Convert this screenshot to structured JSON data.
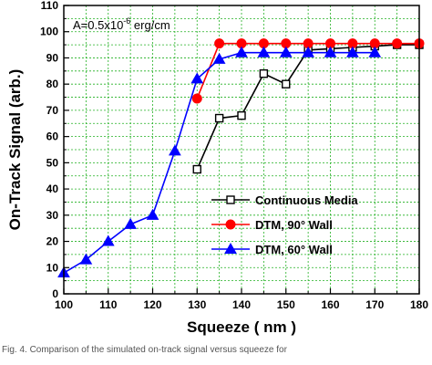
{
  "caption": "Fig. 4. Comparison of the simulated on-track signal versus squeeze for",
  "chart_data": {
    "type": "line",
    "xlabel": "Squeeze ( nm )",
    "ylabel": "On-Track Signal (arb.)",
    "annotation": {
      "prefix": "A=0.5x10",
      "exponent": "-6",
      "suffix": " erg/cm"
    },
    "xlim": [
      100,
      180
    ],
    "ylim": [
      0,
      110
    ],
    "xticks": [
      100,
      110,
      120,
      130,
      140,
      150,
      160,
      170,
      180
    ],
    "yticks": [
      0,
      10,
      20,
      30,
      40,
      50,
      60,
      70,
      80,
      90,
      100,
      110
    ],
    "xtick_labels": [
      "100",
      "110",
      "120",
      "130",
      "140",
      "150",
      "160",
      "170",
      "180"
    ],
    "ytick_labels": [
      "0",
      "10",
      "20",
      "30",
      "40",
      "50",
      "60",
      "70",
      "80",
      "90",
      "100",
      "110"
    ],
    "grid": true,
    "legend_position": "lower-right",
    "series": [
      {
        "name": "Continuous Media",
        "color": "#000000",
        "marker": "square-open",
        "x": [
          130,
          135,
          140,
          145,
          150,
          155,
          160,
          165,
          170,
          175,
          180
        ],
        "y": [
          47.5,
          67,
          68,
          84,
          80,
          93,
          93.5,
          94,
          94.5,
          95,
          95
        ]
      },
      {
        "name": "DTM, 90° Wall",
        "color": "#ff0000",
        "marker": "circle-filled",
        "x": [
          130,
          135,
          140,
          145,
          150,
          155,
          160,
          165,
          170,
          175,
          180
        ],
        "y": [
          74.5,
          95.5,
          95.5,
          95.5,
          95.5,
          95.5,
          95.5,
          95.5,
          95.5,
          95.5,
          95.5
        ]
      },
      {
        "name": "DTM, 60° Wall",
        "color": "#0000ff",
        "marker": "triangle-filled",
        "x": [
          100,
          105,
          110,
          115,
          120,
          125,
          130,
          135,
          140,
          145,
          150,
          155,
          160,
          165,
          170
        ],
        "y": [
          8,
          13,
          20,
          26.5,
          30,
          54.5,
          82,
          89.5,
          92,
          92,
          92,
          92,
          92,
          92,
          92
        ]
      }
    ]
  }
}
